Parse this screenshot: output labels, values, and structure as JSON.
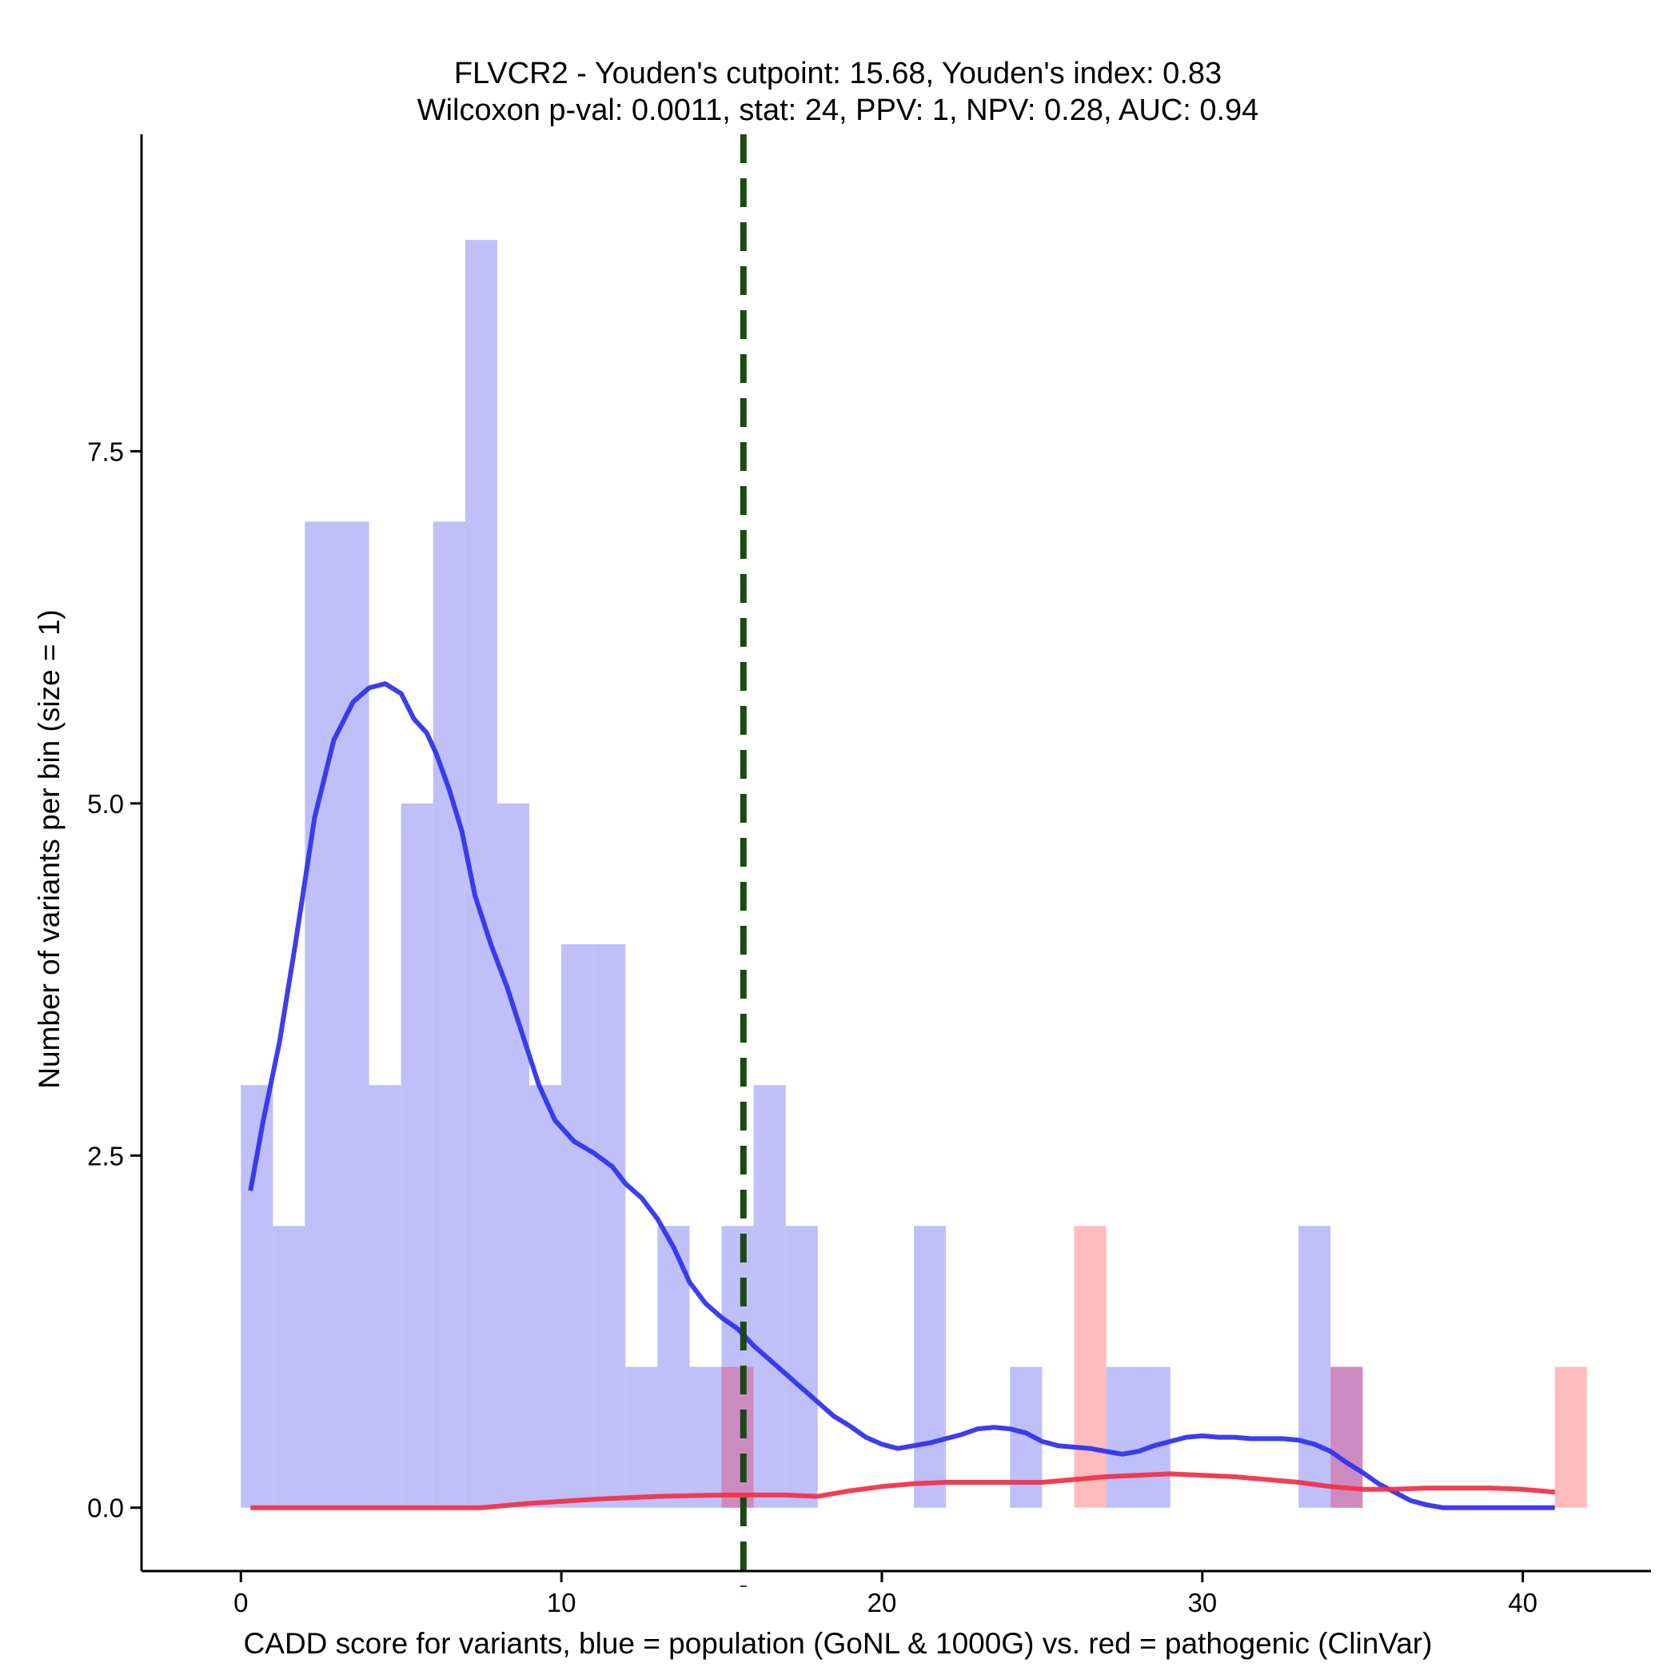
{
  "chart_data": {
    "type": "bar",
    "title": "FLVCR2 - Youden's cutpoint: 15.68, Youden's index: 0.83",
    "subtitle": "Wilcoxon p-val: 0.0011, stat: 24, PPV: 1, NPV: 0.28, AUC: 0.94",
    "xlabel": "CADD score for variants, blue = population (GoNL & 1000G) vs. red = pathogenic (ClinVar)",
    "ylabel": "Number of variants per bin (size = 1)",
    "xlim": [
      -3.1,
      44.0
    ],
    "ylim": [
      -0.45,
      9.75
    ],
    "x_ticks": [
      0,
      10,
      20,
      30,
      40
    ],
    "x_tick_labels": [
      "0",
      "10",
      "20",
      "30",
      "40"
    ],
    "y_ticks": [
      0,
      2.5,
      5,
      7.5
    ],
    "y_tick_labels": [
      "0.0",
      "2.5",
      "5.0",
      "7.5"
    ],
    "bin_width": 1,
    "cutpoint": 15.68,
    "colors": {
      "population_bar": "#bfbffa",
      "pathogenic_bar": "#ffbcbc",
      "overlap_bar": "#cc8bc0",
      "population_density": "#3333ee",
      "pathogenic_density": "#f0344a",
      "cutpoint_line": "#1a4a12",
      "axis": "#000000"
    },
    "series": [
      {
        "name": "population (GoNL & 1000G)",
        "color_key": "population_bar",
        "bins": [
          {
            "x": 0,
            "count": 3
          },
          {
            "x": 1,
            "count": 2
          },
          {
            "x": 2,
            "count": 7
          },
          {
            "x": 3,
            "count": 7
          },
          {
            "x": 4,
            "count": 3
          },
          {
            "x": 5,
            "count": 5
          },
          {
            "x": 6,
            "count": 7
          },
          {
            "x": 7,
            "count": 9
          },
          {
            "x": 8,
            "count": 5
          },
          {
            "x": 9,
            "count": 3
          },
          {
            "x": 10,
            "count": 4
          },
          {
            "x": 11,
            "count": 4
          },
          {
            "x": 12,
            "count": 1
          },
          {
            "x": 13,
            "count": 2
          },
          {
            "x": 14,
            "count": 1
          },
          {
            "x": 15,
            "count": 2
          },
          {
            "x": 16,
            "count": 3
          },
          {
            "x": 17,
            "count": 2
          },
          {
            "x": 21,
            "count": 2
          },
          {
            "x": 24,
            "count": 1
          },
          {
            "x": 27,
            "count": 1
          },
          {
            "x": 28,
            "count": 1
          },
          {
            "x": 33,
            "count": 2
          },
          {
            "x": 34,
            "count": 1
          }
        ]
      },
      {
        "name": "pathogenic (ClinVar)",
        "color_key": "pathogenic_bar",
        "bins": [
          {
            "x": 15,
            "count": 1
          },
          {
            "x": 26,
            "count": 2
          },
          {
            "x": 34,
            "count": 1
          },
          {
            "x": 41,
            "count": 1
          }
        ]
      }
    ],
    "density_curves": [
      {
        "name": "population density",
        "color_key": "population_density",
        "x": [
          0.3,
          0.7,
          1.2,
          1.7,
          2.3,
          2.9,
          3.5,
          4,
          4.5,
          5,
          5.4,
          5.8,
          6.1,
          6.5,
          6.9,
          7.3,
          7.8,
          8.3,
          8.8,
          9.3,
          9.8,
          10.4,
          11,
          11.6,
          12,
          12.5,
          13,
          13.5,
          14,
          14.5,
          15,
          15.5,
          16,
          16.5,
          17,
          17.5,
          18,
          18.5,
          19,
          19.5,
          20,
          20.5,
          21,
          21.5,
          22,
          22.5,
          23,
          23.5,
          24,
          24.5,
          25,
          25.5,
          26,
          26.5,
          27,
          27.5,
          28,
          28.5,
          29,
          29.5,
          30,
          30.5,
          31,
          31.5,
          32,
          32.5,
          33,
          33.5,
          34,
          34.5,
          35,
          35.5,
          36,
          36.5,
          37,
          37.5,
          38,
          38.5,
          39,
          39.5,
          40,
          40.5,
          41
        ],
        "y": [
          2.25,
          2.75,
          3.3,
          4.0,
          4.9,
          5.45,
          5.72,
          5.82,
          5.85,
          5.78,
          5.6,
          5.5,
          5.35,
          5.1,
          4.8,
          4.35,
          4.0,
          3.7,
          3.35,
          3.0,
          2.75,
          2.6,
          2.52,
          2.42,
          2.3,
          2.2,
          2.05,
          1.85,
          1.6,
          1.45,
          1.35,
          1.27,
          1.15,
          1.05,
          0.95,
          0.85,
          0.75,
          0.65,
          0.58,
          0.5,
          0.45,
          0.42,
          0.44,
          0.46,
          0.49,
          0.52,
          0.56,
          0.57,
          0.56,
          0.53,
          0.47,
          0.44,
          0.43,
          0.42,
          0.4,
          0.38,
          0.4,
          0.44,
          0.47,
          0.5,
          0.51,
          0.5,
          0.5,
          0.49,
          0.49,
          0.49,
          0.48,
          0.45,
          0.4,
          0.32,
          0.25,
          0.17,
          0.11,
          0.05,
          0.02,
          0.0,
          0.0,
          0.0,
          0.0,
          0.0,
          0.0,
          0.0,
          0.0
        ]
      },
      {
        "name": "pathogenic density",
        "color_key": "pathogenic_density",
        "x": [
          0.3,
          2,
          4,
          6,
          7.5,
          9,
          11,
          13,
          15,
          16,
          17,
          18,
          19,
          20,
          21,
          22,
          23,
          24,
          25,
          26,
          27,
          28,
          29,
          30,
          31,
          32,
          33,
          34,
          35,
          36,
          37,
          38,
          39,
          40,
          41
        ],
        "y": [
          0.0,
          0.0,
          0.0,
          0.0,
          0.0,
          0.03,
          0.06,
          0.08,
          0.09,
          0.09,
          0.09,
          0.08,
          0.12,
          0.15,
          0.17,
          0.18,
          0.18,
          0.18,
          0.18,
          0.2,
          0.22,
          0.23,
          0.24,
          0.23,
          0.22,
          0.2,
          0.18,
          0.15,
          0.13,
          0.13,
          0.14,
          0.14,
          0.14,
          0.13,
          0.11
        ]
      }
    ]
  }
}
